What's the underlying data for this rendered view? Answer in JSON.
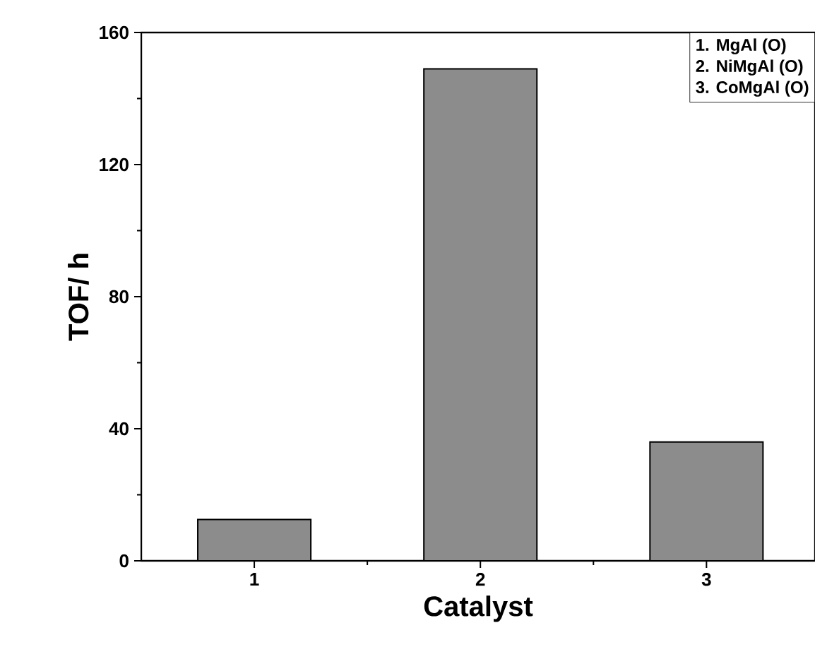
{
  "chart_data": {
    "type": "bar",
    "xlabel": "Catalyst",
    "ylabel": "TOF/ h",
    "categories": [
      "1",
      "2",
      "3"
    ],
    "values": [
      12.5,
      149,
      36
    ],
    "color": "#8c8c8c",
    "ylim": [
      0,
      160
    ],
    "yticks": [
      0,
      40,
      80,
      120,
      160
    ],
    "grid": false,
    "annotations": [
      "1. MgAl (O)",
      "2. NiMgAl (O)",
      "3. CoMgAl (O)"
    ]
  }
}
